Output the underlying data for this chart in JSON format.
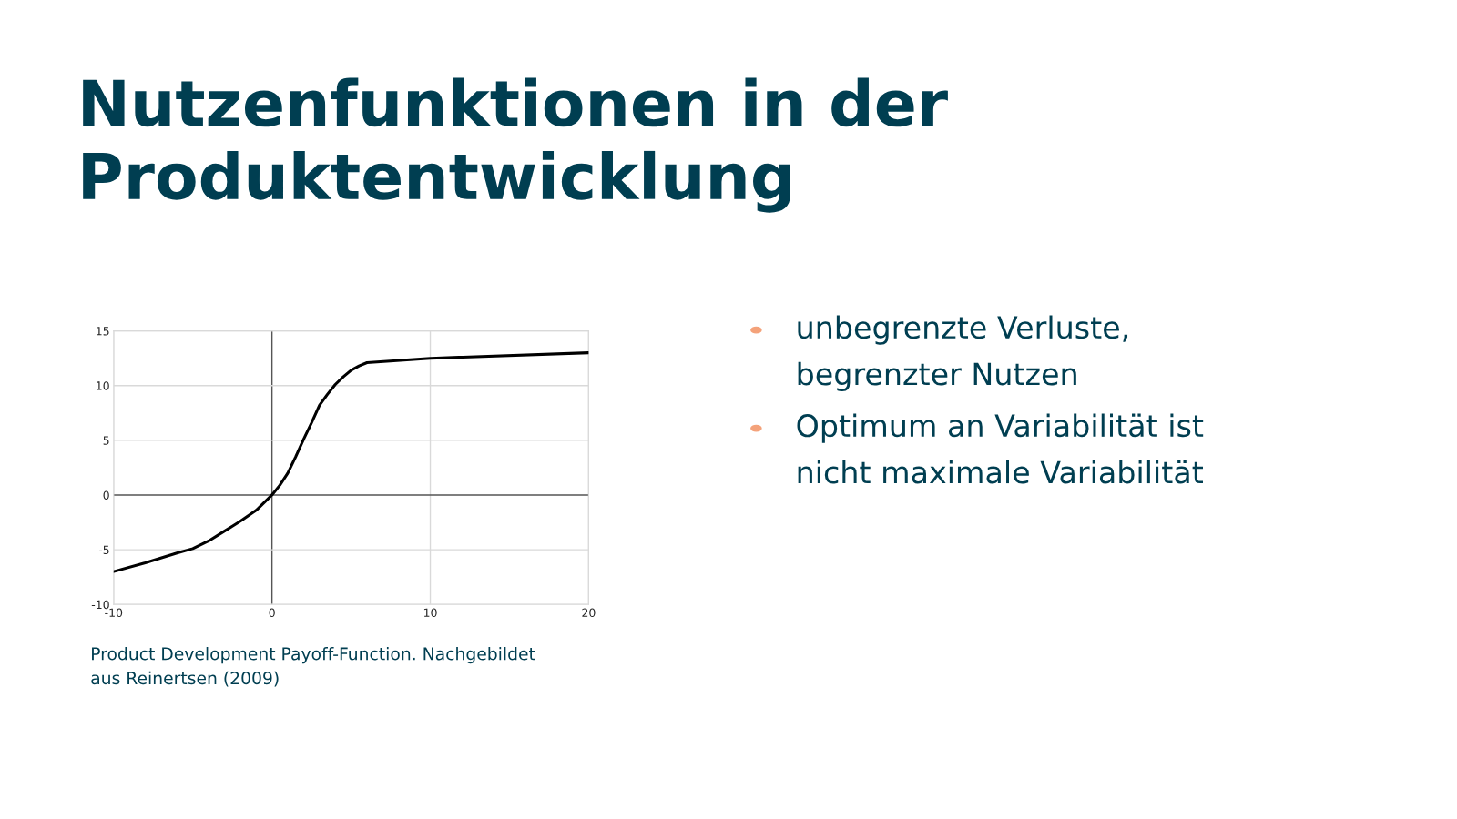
{
  "chart_data": {
    "type": "line",
    "title": "Nutzenfunktionen in der\nProduktentwicklung",
    "x": [
      -10,
      -8,
      -6,
      -5,
      -4,
      -3,
      -2,
      -1,
      0,
      0.5,
      1,
      1.5,
      2,
      2.5,
      3,
      3.5,
      4,
      4.5,
      5,
      5.5,
      6,
      10,
      20
    ],
    "series": [
      {
        "color": "#000000",
        "values": [
          -7.0,
          -6.2,
          -5.3,
          -4.9,
          -4.2,
          -3.3,
          -2.4,
          -1.4,
          0,
          0.9,
          2.0,
          3.5,
          5.1,
          6.6,
          8.2,
          9.2,
          10.1,
          10.8,
          11.4,
          11.8,
          12.1,
          12.5,
          13.0
        ]
      }
    ],
    "xlim": [
      -10,
      20
    ],
    "xticks": [
      -10,
      0,
      10,
      20
    ],
    "ylim": [
      -10,
      15
    ],
    "yticks": [
      -10,
      -5,
      0,
      5,
      10,
      15
    ],
    "grid": true,
    "marker": "none",
    "line_style": "solid",
    "annotations": [
      "unbegrenzte Verluste,\nbegrenzter Nutzen",
      "Optimum an Variabilität ist\nnicht maximale Variabilität",
      "Product Development Payoff-Function. Nachgebildet\naus Reinertsen (2009)"
    ]
  }
}
